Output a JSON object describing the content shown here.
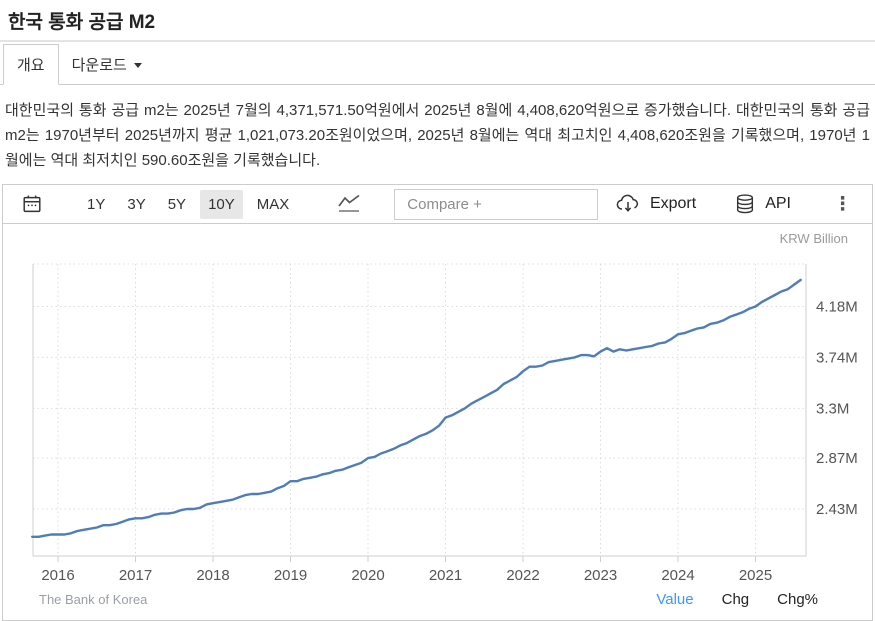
{
  "page": {
    "title": "한국 통화 공급 M2"
  },
  "tabs": {
    "overview": "개요",
    "download": "다운로드"
  },
  "description": "대한민국의 통화 공급 m2는 2025년 7월의 4,371,571.50억원에서 2025년 8월에 4,408,620억원으로 증가했습니다. 대한민국의 통화 공급 m2는 1970년부터 2025년까지 평균 1,021,073.20조원이었으며, 2025년 8월에는 역대 최고치인 4,408,620조원을 기록했으며, 1970년 1월에는 역대 최저치인 590.60조원을 기록했습니다.",
  "toolbar": {
    "ranges": [
      "1Y",
      "3Y",
      "5Y",
      "10Y",
      "MAX"
    ],
    "active_range": "10Y",
    "compare_placeholder": "Compare +",
    "export_label": "Export",
    "api_label": "API"
  },
  "footer": {
    "source": "The Bank of Korea",
    "links": [
      "Value",
      "Chg",
      "Chg%"
    ],
    "active_link": "Value"
  },
  "chart_data": {
    "type": "line",
    "title": "한국 통화 공급 M2",
    "ylabel": "KRW Billion",
    "line_color": "#4e7db8",
    "grid": "dotted",
    "x_start": "2015-09",
    "x_end": "2025-08",
    "frequency": "monthly",
    "x_tick_labels": [
      "2016",
      "2017",
      "2018",
      "2019",
      "2020",
      "2021",
      "2022",
      "2023",
      "2024",
      "2025"
    ],
    "y_ticks": [
      2.43,
      2.87,
      3.3,
      3.74,
      4.18
    ],
    "y_tick_labels": [
      "2.43M",
      "2.87M",
      "3.3M",
      "3.74M",
      "4.18M"
    ],
    "ylim": [
      1.99,
      4.55
    ],
    "latest_value_billion": 4408620,
    "series": [
      {
        "name": "Value",
        "unit": "M KRW Billion",
        "values": [
          2.19,
          2.19,
          2.2,
          2.21,
          2.21,
          2.21,
          2.22,
          2.24,
          2.25,
          2.26,
          2.27,
          2.29,
          2.29,
          2.3,
          2.32,
          2.34,
          2.35,
          2.35,
          2.36,
          2.38,
          2.39,
          2.39,
          2.4,
          2.42,
          2.43,
          2.43,
          2.44,
          2.47,
          2.48,
          2.49,
          2.5,
          2.51,
          2.53,
          2.55,
          2.56,
          2.56,
          2.57,
          2.58,
          2.61,
          2.63,
          2.67,
          2.67,
          2.69,
          2.7,
          2.71,
          2.73,
          2.74,
          2.76,
          2.77,
          2.79,
          2.81,
          2.83,
          2.87,
          2.88,
          2.91,
          2.93,
          2.95,
          2.98,
          3.0,
          3.03,
          3.06,
          3.08,
          3.11,
          3.15,
          3.22,
          3.24,
          3.27,
          3.3,
          3.34,
          3.37,
          3.4,
          3.43,
          3.46,
          3.51,
          3.54,
          3.57,
          3.62,
          3.66,
          3.66,
          3.67,
          3.7,
          3.71,
          3.72,
          3.73,
          3.74,
          3.76,
          3.76,
          3.75,
          3.79,
          3.82,
          3.79,
          3.81,
          3.8,
          3.81,
          3.82,
          3.83,
          3.84,
          3.86,
          3.87,
          3.9,
          3.94,
          3.95,
          3.97,
          3.99,
          4.0,
          4.03,
          4.04,
          4.06,
          4.09,
          4.11,
          4.13,
          4.16,
          4.18,
          4.22,
          4.25,
          4.28,
          4.31,
          4.33,
          4.37,
          4.41
        ]
      }
    ]
  }
}
